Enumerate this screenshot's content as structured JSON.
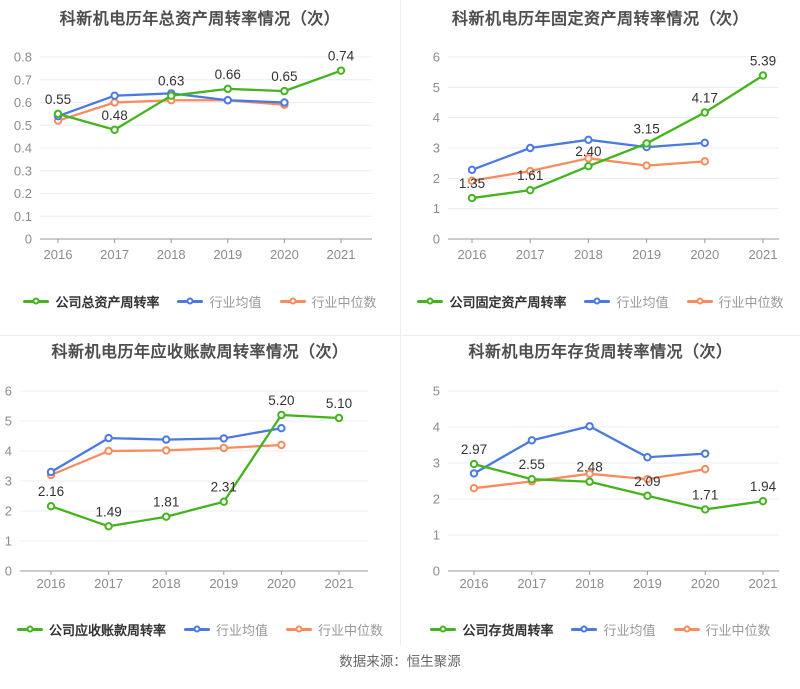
{
  "meta": {
    "footer_source": "数据来源：恒生聚源"
  },
  "palette": {
    "company": "#44b41e",
    "industry_avg": "#4b79e1",
    "industry_median": "#f98b5d",
    "title_text": "#4e4e4e",
    "axis_text": "#8c8c8c",
    "grid_line": "#e8eef5",
    "axis_line": "#999999",
    "value_label": "#333333",
    "legend_muted_text": "#999999",
    "divider": "#ededed"
  },
  "chart_data": [
    {
      "type": "line",
      "title": "科新机电历年总资产周转率情况（次）",
      "x": [
        "2016",
        "2017",
        "2018",
        "2019",
        "2020",
        "2021"
      ],
      "ylim": [
        0,
        0.8
      ],
      "yticks": [
        "0",
        "0.1",
        "0.2",
        "0.3",
        "0.4",
        "0.5",
        "0.6",
        "0.7",
        "0.8"
      ],
      "grid": true,
      "legend_position": "bottom",
      "series": [
        {
          "name": "公司总资产周转率",
          "color_role": "company",
          "values": [
            0.55,
            0.48,
            0.63,
            0.66,
            0.65,
            0.74
          ],
          "point_labels": [
            "0.55",
            "0.48",
            "0.63",
            "0.66",
            "0.65",
            "0.74"
          ]
        },
        {
          "name": "行业均值",
          "color_role": "industry_avg",
          "values": [
            0.54,
            0.63,
            0.64,
            0.61,
            0.6,
            null
          ]
        },
        {
          "name": "行业中位数",
          "color_role": "industry_median",
          "values": [
            0.52,
            0.6,
            0.61,
            0.61,
            0.59,
            null
          ]
        }
      ]
    },
    {
      "type": "line",
      "title": "科新机电历年固定资产周转率情况（次）",
      "x": [
        "2016",
        "2017",
        "2018",
        "2019",
        "2020",
        "2021"
      ],
      "ylim": [
        0,
        6
      ],
      "yticks": [
        "0",
        "1",
        "2",
        "3",
        "4",
        "5",
        "6"
      ],
      "grid": true,
      "legend_position": "bottom",
      "series": [
        {
          "name": "公司固定资产周转率",
          "color_role": "company",
          "values": [
            1.35,
            1.61,
            2.4,
            3.15,
            4.17,
            5.39
          ],
          "point_labels": [
            "1.35",
            "1.61",
            "2.40",
            "3.15",
            "4.17",
            "5.39"
          ]
        },
        {
          "name": "行业均值",
          "color_role": "industry_avg",
          "values": [
            2.28,
            3.0,
            3.27,
            3.03,
            3.17,
            null
          ]
        },
        {
          "name": "行业中位数",
          "color_role": "industry_median",
          "values": [
            1.92,
            2.24,
            2.66,
            2.42,
            2.56,
            null
          ]
        }
      ]
    },
    {
      "type": "line",
      "title": "科新机电历年应收账款周转率情况（次）",
      "x": [
        "2016",
        "2017",
        "2018",
        "2019",
        "2020",
        "2021"
      ],
      "ylim": [
        0,
        6
      ],
      "yticks": [
        "0",
        "1",
        "2",
        "3",
        "4",
        "5",
        "6"
      ],
      "grid": true,
      "legend_position": "bottom",
      "series": [
        {
          "name": "公司应收账款周转率",
          "color_role": "company",
          "values": [
            2.16,
            1.49,
            1.81,
            2.31,
            5.2,
            5.1
          ],
          "point_labels": [
            "2.16",
            "1.49",
            "1.81",
            "2.31",
            "5.20",
            "5.10"
          ]
        },
        {
          "name": "行业均值",
          "color_role": "industry_avg",
          "values": [
            3.3,
            4.43,
            4.38,
            4.42,
            4.76,
            null
          ]
        },
        {
          "name": "行业中位数",
          "color_role": "industry_median",
          "values": [
            3.2,
            4.0,
            4.02,
            4.1,
            4.2,
            null
          ]
        }
      ]
    },
    {
      "type": "line",
      "title": "科新机电历年存货周转率情况（次）",
      "x": [
        "2016",
        "2017",
        "2018",
        "2019",
        "2020",
        "2021"
      ],
      "ylim": [
        0,
        5
      ],
      "yticks": [
        "0",
        "1",
        "2",
        "3",
        "4",
        "5"
      ],
      "grid": true,
      "legend_position": "bottom",
      "series": [
        {
          "name": "公司存货周转率",
          "color_role": "company",
          "values": [
            2.97,
            2.55,
            2.48,
            2.09,
            1.71,
            1.94
          ],
          "point_labels": [
            "2.97",
            "2.55",
            "2.48",
            "2.09",
            "1.71",
            "1.94"
          ]
        },
        {
          "name": "行业均值",
          "color_role": "industry_avg",
          "values": [
            2.71,
            3.63,
            4.02,
            3.16,
            3.26,
            null
          ]
        },
        {
          "name": "行业中位数",
          "color_role": "industry_median",
          "values": [
            2.3,
            2.49,
            2.7,
            2.55,
            2.83,
            null
          ]
        }
      ]
    }
  ]
}
